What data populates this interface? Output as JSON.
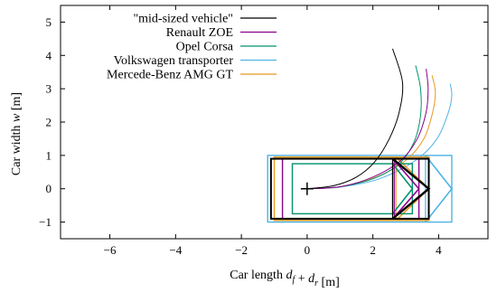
{
  "chart_data": {
    "type": "line",
    "title": "",
    "xlabel": "Car length d_f + d_r [m]",
    "ylabel": "Car width w [m]",
    "xlim": [
      -7.5,
      5.5
    ],
    "ylim": [
      -1.5,
      5.5
    ],
    "xticks": [
      -6,
      -4,
      -2,
      0,
      2,
      4
    ],
    "yticks": [
      -1,
      0,
      1,
      2,
      3,
      4,
      5
    ],
    "grid": false,
    "legend_position": "top-left",
    "origin_marker": [
      0,
      0
    ],
    "series": [
      {
        "name": "\"mid-sized vehicle\"",
        "color": "#000000",
        "rect": {
          "x0": -1.1,
          "x1": 3.7,
          "y0": -0.9,
          "y1": 0.9
        },
        "arrow": {
          "tail_x": 2.6,
          "tip_x": 3.7,
          "half_width": 0.9
        },
        "path": [
          [
            0,
            0
          ],
          [
            0.8,
            0.09
          ],
          [
            1.5,
            0.35
          ],
          [
            2.05,
            0.8
          ],
          [
            2.5,
            1.5
          ],
          [
            2.8,
            2.3
          ],
          [
            2.9,
            3.2
          ],
          [
            2.6,
            4.2
          ]
        ]
      },
      {
        "name": "Renault ZOE",
        "color": "#8b008b",
        "rect": {
          "x0": -0.75,
          "x1": 3.4,
          "y0": -0.9,
          "y1": 0.9
        },
        "arrow": {
          "tail_x": 2.65,
          "tip_x": 3.4,
          "half_width": 0.85
        },
        "path": [
          [
            0,
            0
          ],
          [
            1.0,
            0.06
          ],
          [
            2.0,
            0.35
          ],
          [
            2.85,
            0.85
          ],
          [
            3.35,
            1.5
          ],
          [
            3.62,
            2.3
          ],
          [
            3.68,
            3.0
          ],
          [
            3.62,
            3.6
          ]
        ]
      },
      {
        "name": "Opel Corsa",
        "color": "#00936b",
        "rect": {
          "x0": -0.45,
          "x1": 3.2,
          "y0": -0.75,
          "y1": 0.75
        },
        "arrow": {
          "tail_x": 2.6,
          "tip_x": 3.2,
          "half_width": 0.75
        },
        "path": [
          [
            0,
            0
          ],
          [
            1.0,
            0.06
          ],
          [
            2.0,
            0.3
          ],
          [
            2.8,
            0.75
          ],
          [
            3.25,
            1.4
          ],
          [
            3.45,
            2.2
          ],
          [
            3.45,
            3.0
          ],
          [
            3.3,
            3.7
          ]
        ]
      },
      {
        "name": "Volkswagen transporter",
        "color": "#4fb3e6",
        "rect": {
          "x0": -1.2,
          "x1": 4.4,
          "y0": -1.0,
          "y1": 1.0
        },
        "arrow": {
          "tail_x": 3.6,
          "tip_x": 4.4,
          "half_width": 1.0
        },
        "path": [
          [
            0,
            0
          ],
          [
            1.0,
            0.05
          ],
          [
            2.2,
            0.3
          ],
          [
            3.3,
            0.85
          ],
          [
            3.95,
            1.5
          ],
          [
            4.3,
            2.3
          ],
          [
            4.4,
            2.8
          ],
          [
            4.35,
            3.15
          ]
        ]
      },
      {
        "name": "Mercede-Benz AMG GT",
        "color": "#e69a1f",
        "rect": {
          "x0": -1.0,
          "x1": 3.7,
          "y0": -0.95,
          "y1": 0.95
        },
        "arrow": {
          "tail_x": 2.7,
          "tip_x": 3.7,
          "half_width": 0.95
        },
        "path": [
          [
            0,
            0
          ],
          [
            1.0,
            0.06
          ],
          [
            2.1,
            0.35
          ],
          [
            3.0,
            0.85
          ],
          [
            3.55,
            1.5
          ],
          [
            3.82,
            2.3
          ],
          [
            3.9,
            2.9
          ],
          [
            3.8,
            3.4
          ]
        ]
      }
    ]
  }
}
